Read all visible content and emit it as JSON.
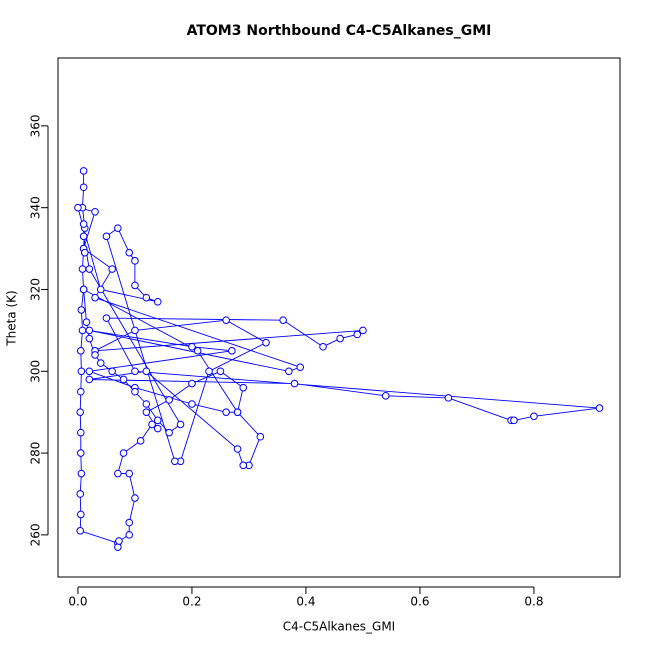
{
  "chart_data": {
    "type": "line",
    "title": "ATOM3 Northbound C4-C5Alkanes_GMI",
    "x_label": "C4-C5Alkanes_GMI",
    "y_label": "Theta (K)",
    "color": "#0000ff",
    "xlim": [
      -0.035,
      0.951
    ],
    "ylim": [
      249.7,
      376.6
    ],
    "xticks": [
      {
        "value": 0,
        "label": "0.0"
      },
      0.2,
      0.4,
      0.6,
      0.8
    ],
    "yticks": [
      260,
      280,
      300,
      320,
      340,
      360
    ],
    "x": [
      0.01,
      0.01,
      0.008,
      0.012,
      0.01,
      0.008,
      0.01,
      0.006,
      0.008,
      0.005,
      0.006,
      0.005,
      0.004,
      0.005,
      0.005,
      0.006,
      0.004,
      0.005,
      0.004,
      0.07,
      0.07,
      0.072,
      0.09,
      0.09,
      0.1,
      0.09,
      0.07,
      0.08,
      0.11,
      0.13,
      0.14,
      0.12,
      0.16,
      0.2,
      0.25,
      0.29,
      0.28,
      0.32,
      0.3,
      0.29,
      0.28,
      0.12,
      0.02,
      0.38,
      0.54,
      0.65,
      0.76,
      0.765,
      0.8,
      0.915,
      0.1,
      0.05,
      0.36,
      0.43,
      0.46,
      0.49,
      0.5,
      0.03,
      0.1,
      0.26,
      0.33,
      0.23,
      0.18,
      0.17,
      0.05,
      0.07,
      0.09,
      0.1,
      0.1,
      0.12,
      0.14,
      0.04,
      0.0,
      0.03,
      0.01,
      0.06,
      0.03,
      0.39,
      0.37,
      0.02,
      0.2,
      0.27,
      0.02,
      0.1,
      0.2,
      0.26,
      0.28,
      0.21,
      0.01,
      0.015,
      0.02,
      0.03,
      0.04,
      0.06,
      0.08,
      0.1,
      0.12,
      0.14,
      0.16,
      0.18,
      0.02,
      0.01,
      0.012,
      0.01
    ],
    "values": [
      349,
      345,
      340,
      335,
      330,
      325,
      320,
      315,
      310,
      305,
      300,
      295,
      290,
      285,
      280,
      275,
      270,
      265,
      261,
      258,
      257,
      258.5,
      260,
      263,
      269,
      275,
      275,
      280,
      283,
      287,
      286,
      290,
      293,
      297,
      300,
      296,
      290,
      284,
      277,
      277,
      281,
      300,
      298,
      297,
      294,
      293.5,
      288,
      288,
      289,
      291,
      300,
      313,
      312.5,
      306,
      308,
      309,
      310,
      305,
      310,
      312.5,
      307,
      300,
      278,
      278,
      333,
      335,
      329,
      327,
      321,
      318,
      317,
      320,
      340,
      339,
      330,
      325,
      318,
      301,
      300,
      310,
      306,
      305,
      300,
      296,
      292,
      290,
      290,
      305,
      320,
      312,
      308,
      304,
      302,
      300,
      298,
      295,
      292,
      288,
      285,
      287,
      325,
      333,
      329,
      336
    ]
  }
}
